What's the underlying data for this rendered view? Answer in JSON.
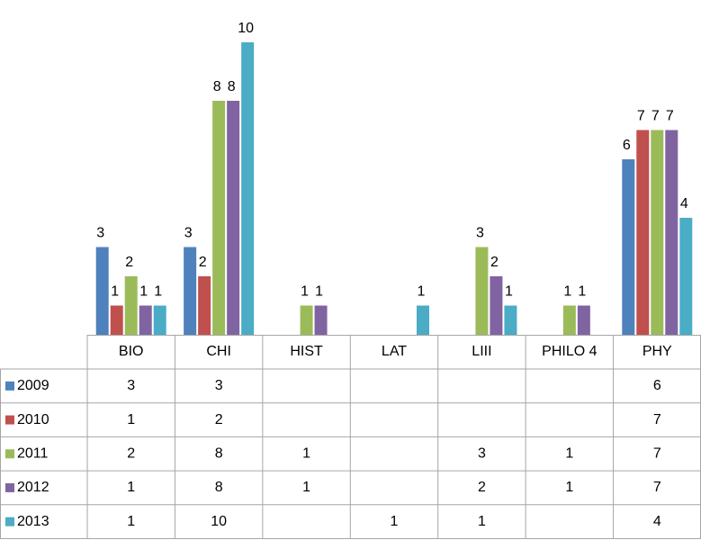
{
  "chart_data": {
    "type": "bar",
    "categories": [
      "BIO",
      "CHI",
      "HIST",
      "LAT",
      "LIII",
      "PHILO 4",
      "PHY"
    ],
    "series": [
      {
        "name": "2009",
        "color": "#4f81bd",
        "values": [
          3,
          3,
          null,
          null,
          null,
          null,
          6
        ]
      },
      {
        "name": "2010",
        "color": "#c0504d",
        "values": [
          1,
          2,
          null,
          null,
          null,
          null,
          7
        ]
      },
      {
        "name": "2011",
        "color": "#9bbb59",
        "values": [
          2,
          8,
          1,
          null,
          3,
          1,
          7
        ]
      },
      {
        "name": "2012",
        "color": "#8064a2",
        "values": [
          1,
          8,
          1,
          null,
          2,
          1,
          7
        ]
      },
      {
        "name": "2013",
        "color": "#4bacc6",
        "values": [
          1,
          10,
          null,
          1,
          1,
          null,
          4
        ]
      }
    ],
    "ylim": [
      0,
      10
    ]
  }
}
